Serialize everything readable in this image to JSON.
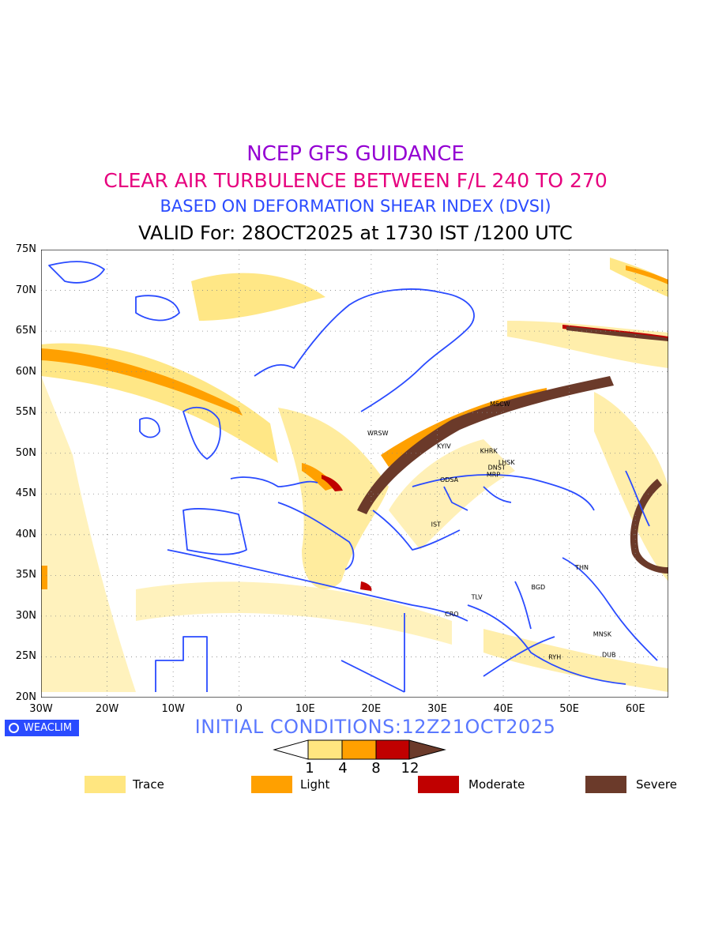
{
  "header": {
    "line1": "NCEP GFS GUIDANCE",
    "line2": "CLEAR AIR TURBULENCE BETWEEN F/L 240 TO 270",
    "line3": "BASED ON DEFORMATION SHEAR INDEX (DVSI)",
    "line4": "VALID For: 28OCT2025 at 1730 IST /1200 UTC"
  },
  "axes": {
    "lat_labels": [
      "75N",
      "70N",
      "65N",
      "60N",
      "55N",
      "50N",
      "45N",
      "40N",
      "35N",
      "30N",
      "25N",
      "20N"
    ],
    "lon_labels": [
      "30W",
      "20W",
      "10W",
      "0",
      "10E",
      "20E",
      "30E",
      "40E",
      "50E",
      "60E"
    ],
    "lat_range": [
      20,
      75
    ],
    "lon_range": [
      -30,
      65
    ]
  },
  "stations": [
    {
      "label": "MSCW",
      "lon": 39.5,
      "lat": 55.8
    },
    {
      "label": "WRSW",
      "lon": 21.0,
      "lat": 52.2
    },
    {
      "label": "KYIV",
      "lon": 31.0,
      "lat": 50.6
    },
    {
      "label": "KHRK",
      "lon": 37.8,
      "lat": 50.0
    },
    {
      "label": "LHSK",
      "lon": 40.5,
      "lat": 48.6
    },
    {
      "label": "DNST",
      "lon": 39.0,
      "lat": 48.0
    },
    {
      "label": "MRP",
      "lon": 38.5,
      "lat": 47.1
    },
    {
      "label": "ODSA",
      "lon": 31.8,
      "lat": 46.5
    },
    {
      "label": "IST",
      "lon": 29.8,
      "lat": 41.0
    },
    {
      "label": "THN",
      "lon": 51.9,
      "lat": 35.7
    },
    {
      "label": "BGD",
      "lon": 45.3,
      "lat": 33.3
    },
    {
      "label": "TLV",
      "lon": 36.0,
      "lat": 32.1
    },
    {
      "label": "CRO",
      "lon": 32.2,
      "lat": 30.0
    },
    {
      "label": "MNSK",
      "lon": 55.0,
      "lat": 27.5
    },
    {
      "label": "DUB",
      "lon": 56.0,
      "lat": 25.0
    },
    {
      "label": "RYH",
      "lon": 47.8,
      "lat": 24.7
    }
  ],
  "weaclim": "WEACLIM",
  "initial_conditions": "INITIAL CONDITIONS:12Z21OCT2025",
  "colorbar": {
    "ticks": [
      "1",
      "4",
      "8",
      "12"
    ],
    "colors": [
      "#ffe680",
      "#ffa000",
      "#c00000",
      "#6b3a2a"
    ]
  },
  "legend": [
    {
      "label": "Trace",
      "color": "#ffe680"
    },
    {
      "label": "Light",
      "color": "#ffa000"
    },
    {
      "label": "Moderate",
      "color": "#c00000"
    },
    {
      "label": "Severe",
      "color": "#6b3a2a"
    }
  ]
}
